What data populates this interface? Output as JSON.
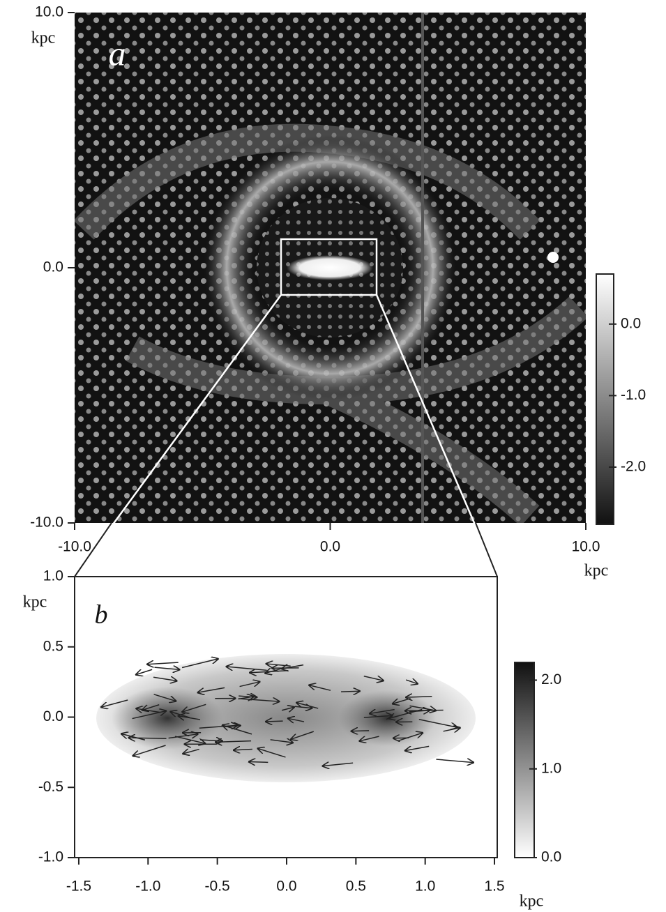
{
  "chart_data": [
    {
      "type": "image",
      "panel_label": "a",
      "xlim": [
        -10,
        10
      ],
      "ylim": [
        -10,
        10
      ],
      "xticks": [
        {
          "value": -10,
          "label": "-10.0"
        },
        {
          "value": 0,
          "label": "0.0"
        },
        {
          "value": 10,
          "label": "10.0"
        }
      ],
      "yticks": [
        {
          "value": 10,
          "label": "10.0"
        },
        {
          "value": 0,
          "label": "0.0"
        },
        {
          "value": -10,
          "label": "-10.0"
        }
      ],
      "xlabel": "kpc",
      "ylabel": "kpc",
      "colorbar": {
        "lim": [
          -2.8,
          0.7
        ],
        "colors": [
          "#111111",
          "#ffffff"
        ],
        "ticks": [
          {
            "value": 0,
            "label": "0.0"
          },
          {
            "value": -1,
            "label": "-1.0"
          },
          {
            "value": -2,
            "label": "-2.0"
          }
        ]
      }
    },
    {
      "type": "image",
      "panel_label": "b",
      "xlim": [
        -1.53,
        1.52
      ],
      "ylim": [
        -1,
        1
      ],
      "xticks": [
        -1.5,
        {
          "value": -1,
          "label": "-1.0"
        },
        -0.5,
        {
          "value": 0,
          "label": "0.0"
        },
        0.5,
        {
          "value": 1,
          "label": "1.0"
        },
        1.5
      ],
      "yticks": [
        {
          "value": 1,
          "label": "1.0"
        },
        0.5,
        {
          "value": 0,
          "label": "0.0"
        },
        -0.5,
        {
          "value": -1,
          "label": "-1.0"
        }
      ],
      "xlabel": "kpc",
      "ylabel": "kpc",
      "colorbar": {
        "lim": [
          0,
          2.2
        ],
        "colors": [
          "#ffffff",
          "#111111"
        ],
        "ticks": [
          {
            "value": 0,
            "label": "0.0"
          },
          {
            "value": 1,
            "label": "1.0"
          },
          {
            "value": 2,
            "label": "2.0"
          }
        ]
      }
    }
  ]
}
